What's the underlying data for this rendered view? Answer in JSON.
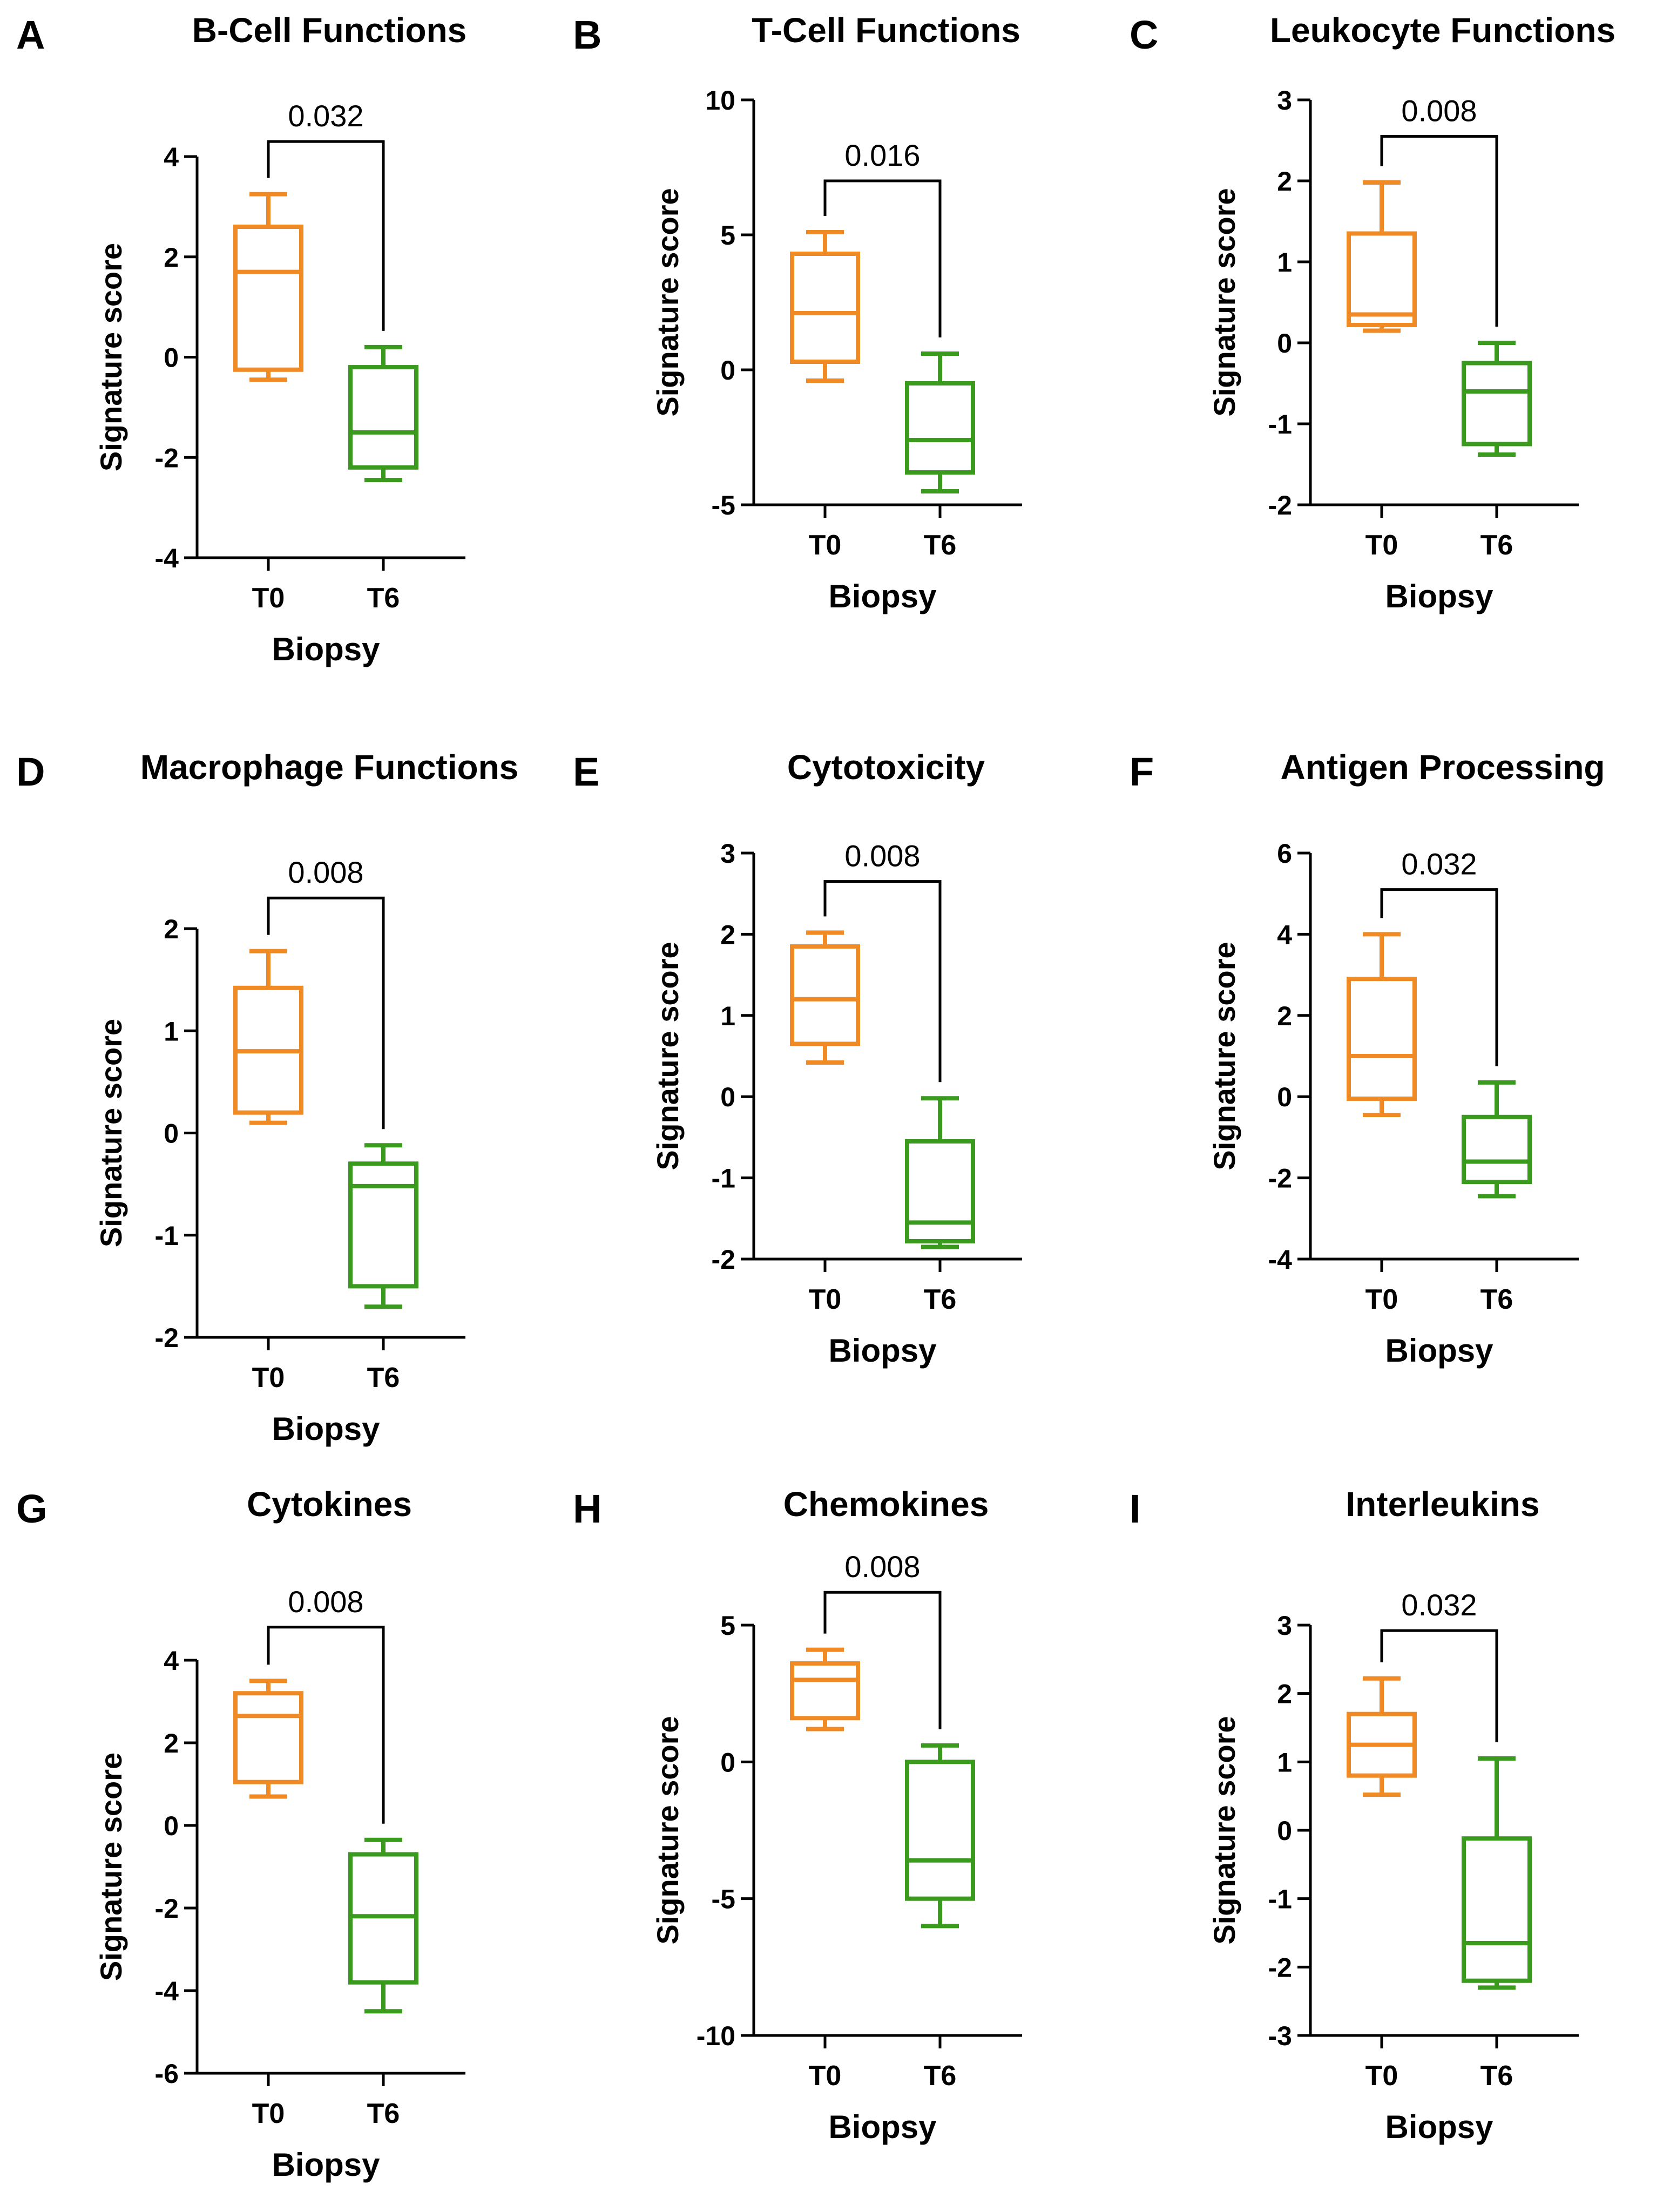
{
  "figure": {
    "colors": {
      "t0": "#F08A24",
      "t6": "#3A9A1E",
      "axis": "#000000",
      "text": "#000000"
    }
  },
  "chart_data": [
    {
      "panel_letter": "A",
      "type": "box",
      "title": "B-Cell Functions",
      "xlabel": "Biopsy",
      "ylabel": "Signature score",
      "categories": [
        "T0",
        "T6"
      ],
      "ylim": [
        -4,
        4
      ],
      "yticks": [
        -4,
        -2,
        0,
        2,
        4
      ],
      "ytick_labels": [
        "-4",
        "-2",
        "0",
        "2",
        "4"
      ],
      "series": [
        {
          "name": "T0",
          "color": "#F08A24",
          "min": -0.45,
          "q1": -0.25,
          "median": 1.7,
          "q3": 2.6,
          "max": 3.25
        },
        {
          "name": "T6",
          "color": "#3A9A1E",
          "min": -2.45,
          "q1": -2.2,
          "median": -1.5,
          "q3": -0.2,
          "max": 0.2
        }
      ],
      "bracket": {
        "label": "0.032",
        "y": 4.3
      }
    },
    {
      "panel_letter": "B",
      "type": "box",
      "title": "T-Cell Functions",
      "xlabel": "Biopsy",
      "ylabel": "Signature score",
      "categories": [
        "T0",
        "T6"
      ],
      "ylim": [
        -5,
        10
      ],
      "yticks": [
        -5,
        0,
        5,
        10
      ],
      "ytick_labels": [
        "-5",
        "0",
        "5",
        "10"
      ],
      "series": [
        {
          "name": "T0",
          "color": "#F08A24",
          "min": -0.4,
          "q1": 0.3,
          "median": 2.1,
          "q3": 4.3,
          "max": 5.1
        },
        {
          "name": "T6",
          "color": "#3A9A1E",
          "min": -4.5,
          "q1": -3.8,
          "median": -2.6,
          "q3": -0.5,
          "max": 0.6
        }
      ],
      "bracket": {
        "label": "0.016",
        "y": 7.0
      }
    },
    {
      "panel_letter": "C",
      "type": "box",
      "title": "Leukocyte Functions",
      "xlabel": "Biopsy",
      "ylabel": "Signature score",
      "categories": [
        "T0",
        "T6"
      ],
      "ylim": [
        -2,
        3
      ],
      "yticks": [
        -2,
        -1,
        0,
        1,
        2,
        3
      ],
      "ytick_labels": [
        "-2",
        "-1",
        "0",
        "1",
        "2",
        "3"
      ],
      "series": [
        {
          "name": "T0",
          "color": "#F08A24",
          "min": 0.15,
          "q1": 0.22,
          "median": 0.35,
          "q3": 1.35,
          "max": 1.98
        },
        {
          "name": "T6",
          "color": "#3A9A1E",
          "min": -1.38,
          "q1": -1.25,
          "median": -0.6,
          "q3": -0.25,
          "max": 0.0
        }
      ],
      "bracket": {
        "label": "0.008",
        "y": 2.55
      }
    },
    {
      "panel_letter": "D",
      "type": "box",
      "title": "Macrophage Functions",
      "xlabel": "Biopsy",
      "ylabel": "Signature score",
      "categories": [
        "T0",
        "T6"
      ],
      "ylim": [
        -2,
        2
      ],
      "yticks": [
        -2,
        -1,
        0,
        1,
        2
      ],
      "ytick_labels": [
        "-2",
        "-1",
        "0",
        "1",
        "2"
      ],
      "series": [
        {
          "name": "T0",
          "color": "#F08A24",
          "min": 0.1,
          "q1": 0.2,
          "median": 0.8,
          "q3": 1.42,
          "max": 1.78
        },
        {
          "name": "T6",
          "color": "#3A9A1E",
          "min": -1.7,
          "q1": -1.5,
          "median": -0.52,
          "q3": -0.3,
          "max": -0.12
        }
      ],
      "bracket": {
        "label": "0.008",
        "y": 2.3
      }
    },
    {
      "panel_letter": "E",
      "type": "box",
      "title": "Cytotoxicity",
      "xlabel": "Biopsy",
      "ylabel": "Signature score",
      "categories": [
        "T0",
        "T6"
      ],
      "ylim": [
        -2,
        3
      ],
      "yticks": [
        -2,
        -1,
        0,
        1,
        2,
        3
      ],
      "ytick_labels": [
        "-2",
        "-1",
        "0",
        "1",
        "2",
        "3"
      ],
      "series": [
        {
          "name": "T0",
          "color": "#F08A24",
          "min": 0.42,
          "q1": 0.65,
          "median": 1.2,
          "q3": 1.85,
          "max": 2.02
        },
        {
          "name": "T6",
          "color": "#3A9A1E",
          "min": -1.85,
          "q1": -1.78,
          "median": -1.55,
          "q3": -0.55,
          "max": -0.02
        }
      ],
      "bracket": {
        "label": "0.008",
        "y": 2.65
      }
    },
    {
      "panel_letter": "F",
      "type": "box",
      "title": "Antigen Processing",
      "xlabel": "Biopsy",
      "ylabel": "Signature score",
      "categories": [
        "T0",
        "T6"
      ],
      "ylim": [
        -4,
        6
      ],
      "yticks": [
        -4,
        -2,
        0,
        2,
        4,
        6
      ],
      "ytick_labels": [
        "-4",
        "-2",
        "0",
        "2",
        "4",
        "6"
      ],
      "series": [
        {
          "name": "T0",
          "color": "#F08A24",
          "min": -0.45,
          "q1": -0.05,
          "median": 1.0,
          "q3": 2.9,
          "max": 4.0
        },
        {
          "name": "T6",
          "color": "#3A9A1E",
          "min": -2.45,
          "q1": -2.1,
          "median": -1.6,
          "q3": -0.5,
          "max": 0.35
        }
      ],
      "bracket": {
        "label": "0.032",
        "y": 5.1
      }
    },
    {
      "panel_letter": "G",
      "type": "box",
      "title": "Cytokines",
      "xlabel": "Biopsy",
      "ylabel": "Signature score",
      "categories": [
        "T0",
        "T6"
      ],
      "ylim": [
        -6,
        4
      ],
      "yticks": [
        -6,
        -4,
        -2,
        0,
        2,
        4
      ],
      "ytick_labels": [
        "-6",
        "-4",
        "-2",
        "0",
        "2",
        "4"
      ],
      "series": [
        {
          "name": "T0",
          "color": "#F08A24",
          "min": 0.7,
          "q1": 1.05,
          "median": 2.65,
          "q3": 3.2,
          "max": 3.5
        },
        {
          "name": "T6",
          "color": "#3A9A1E",
          "min": -4.5,
          "q1": -3.8,
          "median": -2.2,
          "q3": -0.7,
          "max": -0.35
        }
      ],
      "bracket": {
        "label": "0.008",
        "y": 4.8
      }
    },
    {
      "panel_letter": "H",
      "type": "box",
      "title": "Chemokines",
      "xlabel": "Biopsy",
      "ylabel": "Signature score",
      "categories": [
        "T0",
        "T6"
      ],
      "ylim": [
        -10,
        5
      ],
      "yticks": [
        -10,
        -5,
        0,
        5
      ],
      "ytick_labels": [
        "-10",
        "-5",
        "0",
        "5"
      ],
      "series": [
        {
          "name": "T0",
          "color": "#F08A24",
          "min": 1.2,
          "q1": 1.6,
          "median": 3.0,
          "q3": 3.6,
          "max": 4.1
        },
        {
          "name": "T6",
          "color": "#3A9A1E",
          "min": -6.0,
          "q1": -5.0,
          "median": -3.6,
          "q3": 0.0,
          "max": 0.6
        }
      ],
      "bracket": {
        "label": "0.008",
        "y": 6.2
      }
    },
    {
      "panel_letter": "I",
      "type": "box",
      "title": "Interleukins",
      "xlabel": "Biopsy",
      "ylabel": "Signature score",
      "categories": [
        "T0",
        "T6"
      ],
      "ylim": [
        -3,
        3
      ],
      "yticks": [
        -3,
        -2,
        -1,
        0,
        1,
        2,
        3
      ],
      "ytick_labels": [
        "-3",
        "-2",
        "-1",
        "0",
        "1",
        "2",
        "3"
      ],
      "series": [
        {
          "name": "T0",
          "color": "#F08A24",
          "min": 0.52,
          "q1": 0.8,
          "median": 1.25,
          "q3": 1.7,
          "max": 2.22
        },
        {
          "name": "T6",
          "color": "#3A9A1E",
          "min": -2.3,
          "q1": -2.2,
          "median": -1.65,
          "q3": -0.12,
          "max": 1.05
        }
      ],
      "bracket": {
        "label": "0.032",
        "y": 2.92
      }
    }
  ]
}
